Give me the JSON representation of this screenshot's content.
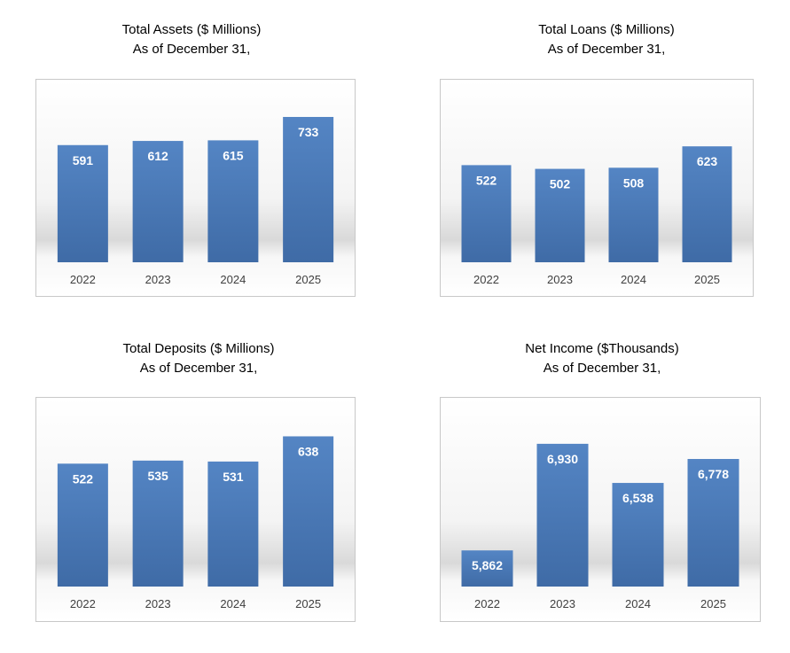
{
  "chart_data": [
    {
      "type": "bar",
      "title": "Total Assets ($ Millions)",
      "subtitle": "As of December 31,",
      "categories": [
        "2022",
        "2023",
        "2024",
        "2025"
      ],
      "values": [
        591,
        612,
        615,
        733
      ],
      "value_labels": [
        "591",
        "612",
        "615",
        "733"
      ],
      "ylim": [
        0,
        800
      ],
      "grid": false,
      "bar_color": "#4a7ab9"
    },
    {
      "type": "bar",
      "title": "Total Loans ($ Millions)",
      "subtitle": "As of December 31,",
      "categories": [
        "2022",
        "2023",
        "2024",
        "2025"
      ],
      "values": [
        522,
        502,
        508,
        623
      ],
      "value_labels": [
        "522",
        "502",
        "508",
        "623"
      ],
      "ylim": [
        0,
        800
      ],
      "grid": false,
      "bar_color": "#4a7ab9"
    },
    {
      "type": "bar",
      "title": "Total Deposits ($ Millions)",
      "subtitle": "As of December 31,",
      "categories": [
        "2022",
        "2023",
        "2024",
        "2025"
      ],
      "values": [
        522,
        535,
        531,
        638
      ],
      "value_labels": [
        "522",
        "535",
        "531",
        "638"
      ],
      "ylim": [
        0,
        700
      ],
      "grid": false,
      "bar_color": "#4a7ab9"
    },
    {
      "type": "bar",
      "title": "Net Income ($Thousands)",
      "subtitle": "As of December 31,",
      "categories": [
        "2022",
        "2023",
        "2024",
        "2025"
      ],
      "values": [
        5862,
        6930,
        6538,
        6778
      ],
      "value_labels": [
        "5,862",
        "6,930",
        "6,538",
        "6,778"
      ],
      "ylim": [
        5500,
        7000
      ],
      "grid": false,
      "bar_color": "#4a7ab9"
    }
  ]
}
